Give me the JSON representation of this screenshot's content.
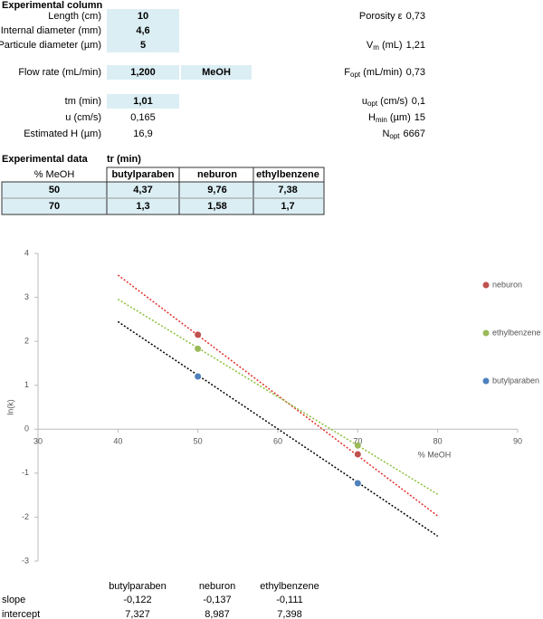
{
  "experimental_column": {
    "title": "Experimental column",
    "rows": [
      {
        "label": "Length (cm)",
        "value": "10",
        "highlight": true
      },
      {
        "label": "Internal diameter (mm)",
        "value": "4,6",
        "highlight": true
      },
      {
        "label": "Particule diameter (µm)",
        "value": "5",
        "highlight": true
      },
      {
        "label": "Flow rate (mL/min)",
        "value": "1,200",
        "highlight": true,
        "extra": "MeOH"
      },
      {
        "label": "tm (min)",
        "value": "1,01",
        "highlight": true
      },
      {
        "label": "u (cm/s)",
        "value": "0,165",
        "highlight": false
      },
      {
        "label": "Estimated H (µm)",
        "value": "16,9",
        "highlight": false
      }
    ],
    "results": [
      {
        "pre": "Porosity  ε",
        "value": "0,73"
      },
      {
        "pre": "V",
        "sub": "m",
        "post": " (mL)",
        "value": "1,21"
      },
      {
        "pre": "F",
        "sub": "opt",
        "post": " (mL/min)",
        "value": "0,73"
      },
      {
        "pre": "u",
        "sub": "opt",
        "post": " (cm/s)",
        "value": "0,1"
      },
      {
        "pre": "H",
        "sub": "min",
        "post": " (µm)",
        "value": "15"
      },
      {
        "pre": "N",
        "sub": "opt",
        "value": "6667"
      }
    ]
  },
  "experimental_data": {
    "title": "Experimental data",
    "group_header": "tr (min)",
    "first_header": "% MeOH",
    "compounds": [
      "butylparaben",
      "neburon",
      "ethylbenzene"
    ],
    "rows": [
      [
        "50",
        "4,37",
        "9,76",
        "7,38"
      ],
      [
        "70",
        "1,3",
        "1,58",
        "1,7"
      ]
    ]
  },
  "chart_data": {
    "type": "scatter",
    "x_label": "% MeOH",
    "y_label": "ln(k)",
    "xlim": [
      30,
      90
    ],
    "xticks": [
      30,
      40,
      50,
      60,
      70,
      80,
      90
    ],
    "ylim": [
      -3,
      4
    ],
    "yticks": [
      -3,
      -2,
      -1,
      0,
      1,
      2,
      3,
      4
    ],
    "series": [
      {
        "name": "neburon",
        "color": "#c0504d",
        "trend_color": "#e0302a",
        "x": [
          50,
          70
        ],
        "values": [
          2.15,
          -0.57
        ],
        "trend_index": 1
      },
      {
        "name": "ethylbenzene",
        "color": "#9bbb59",
        "trend_color": "#8cbf3a",
        "x": [
          50,
          70
        ],
        "values": [
          1.83,
          -0.37
        ],
        "trend_index": 2
      },
      {
        "name": "butylparaben",
        "color": "#4f81bd",
        "trend_color": "#000000",
        "x": [
          50,
          70
        ],
        "values": [
          1.2,
          -1.23
        ],
        "trend_index": 0
      }
    ],
    "trendline_x": [
      40,
      80
    ],
    "trendlines": {
      "names": [
        "butylparaben",
        "neburon",
        "ethylbenzene"
      ],
      "slope_label": "slope",
      "intercept_label": "intercept",
      "slope": [
        -0.122,
        -0.137,
        -0.111
      ],
      "slope_labels": [
        "-0,122",
        "-0,137",
        "-0,111"
      ],
      "intercept": [
        7.327,
        8.987,
        7.398
      ],
      "intercept_labels": [
        "7,327",
        "8,987",
        "7,398"
      ]
    }
  }
}
